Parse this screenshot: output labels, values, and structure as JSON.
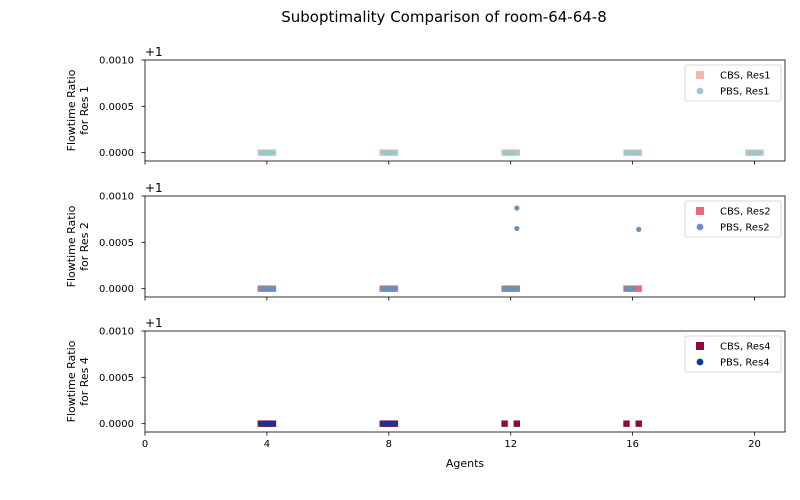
{
  "title": "Suboptimality Comparison of room-64-64-8",
  "chart_data": {
    "type": "scatter",
    "title": "Suboptimality Comparison of room-64-64-8",
    "xlabel": "Agents",
    "xlim": [
      0,
      21
    ],
    "xticks": [
      0,
      4,
      8,
      12,
      16,
      20
    ],
    "x_tick_labels": [
      "0",
      "4",
      "8",
      "12",
      "16",
      "20"
    ],
    "shared_x": true,
    "grid": false,
    "panels": [
      {
        "ylabel_lines": [
          "Flowtime Ratio",
          "for Res 1"
        ],
        "offset_text": "+1",
        "ylim": [
          -9e-05,
          0.001
        ],
        "yticks": [
          0.0,
          0.0005,
          0.001
        ],
        "y_tick_labels": [
          "0.0000",
          "0.0005",
          "0.0010"
        ],
        "legend_position": "top-right",
        "series": [
          {
            "name": "CBS, Res1",
            "marker": "square",
            "color": "#f7b5a8",
            "points": [
              [
                3.8,
                0
              ],
              [
                3.9,
                0
              ],
              [
                4.0,
                0
              ],
              [
                4.1,
                0
              ],
              [
                4.2,
                0
              ],
              [
                7.8,
                0
              ],
              [
                7.9,
                0
              ],
              [
                8.0,
                0
              ],
              [
                8.1,
                0
              ],
              [
                8.2,
                0
              ],
              [
                11.8,
                0
              ],
              [
                11.9,
                0
              ],
              [
                12.0,
                0
              ],
              [
                12.1,
                0
              ],
              [
                12.2,
                0
              ],
              [
                15.8,
                0
              ],
              [
                15.9,
                0
              ],
              [
                16.0,
                0
              ],
              [
                16.1,
                0
              ],
              [
                16.2,
                0
              ],
              [
                19.8,
                0
              ],
              [
                19.9,
                0
              ],
              [
                20.0,
                0
              ],
              [
                20.1,
                0
              ],
              [
                20.2,
                0
              ]
            ]
          },
          {
            "name": "PBS, Res1",
            "marker": "circle",
            "color": "#99c9cc",
            "points": [
              [
                3.8,
                0
              ],
              [
                3.9,
                0
              ],
              [
                4.0,
                0
              ],
              [
                4.1,
                0
              ],
              [
                4.2,
                0
              ],
              [
                7.8,
                0
              ],
              [
                7.9,
                0
              ],
              [
                8.0,
                0
              ],
              [
                8.1,
                0
              ],
              [
                8.2,
                0
              ],
              [
                11.8,
                0
              ],
              [
                11.9,
                0
              ],
              [
                12.0,
                0
              ],
              [
                12.1,
                0
              ],
              [
                12.2,
                0
              ],
              [
                15.8,
                0
              ],
              [
                15.9,
                0
              ],
              [
                16.0,
                0
              ],
              [
                16.1,
                0
              ],
              [
                16.2,
                0
              ],
              [
                19.8,
                0
              ],
              [
                19.9,
                0
              ],
              [
                20.0,
                0
              ],
              [
                20.1,
                0
              ],
              [
                20.2,
                0
              ]
            ]
          }
        ]
      },
      {
        "ylabel_lines": [
          "Flowtime Ratio",
          "for Res 2"
        ],
        "offset_text": "+1",
        "ylim": [
          -9e-05,
          0.001
        ],
        "yticks": [
          0.0,
          0.0005,
          0.001
        ],
        "y_tick_labels": [
          "0.0000",
          "0.0005",
          "0.0010"
        ],
        "legend_position": "top-right",
        "series": [
          {
            "name": "CBS, Res2",
            "marker": "square",
            "color": "#eb6678",
            "points": [
              [
                3.8,
                0
              ],
              [
                3.9,
                0
              ],
              [
                4.0,
                0
              ],
              [
                4.1,
                0
              ],
              [
                4.2,
                0
              ],
              [
                7.8,
                0
              ],
              [
                7.9,
                0
              ],
              [
                8.0,
                0
              ],
              [
                8.1,
                0
              ],
              [
                8.2,
                0
              ],
              [
                11.8,
                0
              ],
              [
                11.9,
                0
              ],
              [
                12.0,
                0
              ],
              [
                12.1,
                0
              ],
              [
                12.2,
                0
              ],
              [
                15.8,
                0
              ],
              [
                15.9,
                0
              ],
              [
                16.0,
                0
              ],
              [
                16.1,
                0
              ],
              [
                16.2,
                0
              ]
            ]
          },
          {
            "name": "PBS, Res2",
            "marker": "circle",
            "color": "#6a8fc2",
            "points": [
              [
                3.8,
                0
              ],
              [
                3.9,
                0
              ],
              [
                4.0,
                0
              ],
              [
                4.1,
                0
              ],
              [
                4.2,
                0
              ],
              [
                7.8,
                0
              ],
              [
                7.9,
                0
              ],
              [
                8.0,
                0
              ],
              [
                8.1,
                0
              ],
              [
                8.2,
                0
              ],
              [
                11.8,
                0
              ],
              [
                11.9,
                0
              ],
              [
                12.0,
                0
              ],
              [
                12.1,
                0
              ],
              [
                12.2,
                0
              ],
              [
                12.2,
                0.00065
              ],
              [
                12.2,
                0.00087
              ],
              [
                15.8,
                0
              ],
              [
                15.9,
                0
              ],
              [
                16.0,
                0
              ],
              [
                16.2,
                0.00064
              ]
            ]
          }
        ]
      },
      {
        "ylabel_lines": [
          "Flowtime Ratio",
          "for Res 4"
        ],
        "offset_text": "+1",
        "ylim": [
          -9e-05,
          0.001
        ],
        "yticks": [
          0.0,
          0.0005,
          0.001
        ],
        "y_tick_labels": [
          "0.0000",
          "0.0005",
          "0.0010"
        ],
        "legend_position": "top-right",
        "series": [
          {
            "name": "CBS, Res4",
            "marker": "square",
            "color": "#8c0a3c",
            "points": [
              [
                3.8,
                0
              ],
              [
                3.9,
                0
              ],
              [
                4.0,
                0
              ],
              [
                4.1,
                0
              ],
              [
                4.2,
                0
              ],
              [
                7.8,
                0
              ],
              [
                7.9,
                0
              ],
              [
                8.0,
                0
              ],
              [
                8.1,
                0
              ],
              [
                8.2,
                0
              ],
              [
                11.8,
                0
              ],
              [
                12.2,
                0
              ],
              [
                15.8,
                0
              ],
              [
                16.2,
                0
              ]
            ]
          },
          {
            "name": "PBS, Res4",
            "marker": "circle",
            "color": "#0a3c96",
            "points": [
              [
                3.8,
                0
              ],
              [
                3.9,
                0
              ],
              [
                4.0,
                0
              ],
              [
                4.1,
                0
              ],
              [
                4.2,
                0
              ],
              [
                7.8,
                0
              ],
              [
                7.9,
                0
              ],
              [
                8.0,
                0
              ],
              [
                8.1,
                0
              ],
              [
                8.2,
                0
              ]
            ]
          }
        ]
      }
    ]
  }
}
